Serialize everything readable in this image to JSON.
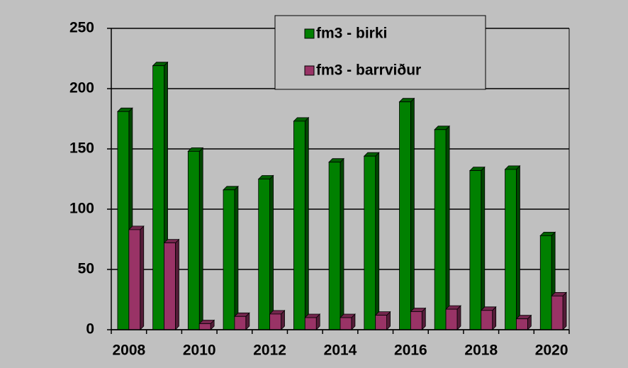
{
  "chart_data": {
    "type": "bar",
    "categories": [
      "2008",
      null,
      "2010",
      null,
      "2012",
      null,
      "2014",
      null,
      "2016",
      null,
      "2018",
      null,
      "2020"
    ],
    "series": [
      {
        "name": "fm3 - birki",
        "color": "#008000",
        "values": [
          181,
          219,
          148,
          116,
          125,
          173,
          139,
          144,
          189,
          166,
          132,
          133,
          78
        ]
      },
      {
        "name": "fm3 - barrviður",
        "color": "#993366",
        "values": [
          83,
          72,
          5,
          11,
          13,
          10,
          10,
          12,
          15,
          17,
          16,
          9,
          28
        ]
      }
    ],
    "ylim": [
      0,
      250
    ],
    "yticks": [
      0,
      50,
      100,
      150,
      200,
      250
    ],
    "grid": true
  }
}
